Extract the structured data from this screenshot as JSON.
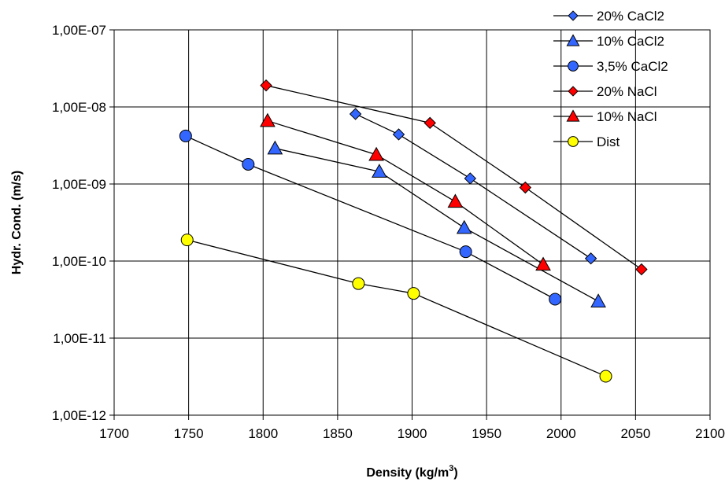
{
  "chart_data": {
    "type": "scatter",
    "title": "",
    "xlabel": "Density (kg/m",
    "xlabel_sup": "3",
    "xlabel_close": ")",
    "ylabel": "Hydr. Cond. (m/s)",
    "xlim": [
      1700,
      2100
    ],
    "ylim": [
      1e-12,
      1e-07
    ],
    "y_scale": "log",
    "grid": true,
    "legend_position": "top-right",
    "x_ticks": [
      1700,
      1750,
      1800,
      1850,
      1900,
      1950,
      2000,
      2050,
      2100
    ],
    "x_tick_labels": [
      "1700",
      "1750",
      "1800",
      "1850",
      "1900",
      "1950",
      "2000",
      "2050",
      "2100"
    ],
    "y_ticks": [
      1e-12,
      1e-11,
      1e-10,
      1e-09,
      1e-08,
      1e-07
    ],
    "y_tick_labels": [
      "1,00E-12",
      "1,00E-11",
      "1,00E-10",
      "1,00E-09",
      "1,00E-08",
      "1,00E-07"
    ],
    "series": [
      {
        "name": "20% CaCl2",
        "marker": "diamond",
        "color": "#3366ff",
        "x": [
          1862,
          1891,
          1939,
          2020
        ],
        "y": [
          8.1e-09,
          4.4e-09,
          1.18e-09,
          1.08e-10
        ]
      },
      {
        "name": "10% CaCl2",
        "marker": "triangle",
        "color": "#3366ff",
        "x": [
          1808,
          1878,
          1935,
          2025
        ],
        "y": [
          2.9e-09,
          1.45e-09,
          2.7e-10,
          3e-11
        ]
      },
      {
        "name": "3,5% CaCl2",
        "marker": "circle",
        "color": "#3366ff",
        "x": [
          1748,
          1790,
          1936,
          1996
        ],
        "y": [
          4.2e-09,
          1.8e-09,
          1.32e-10,
          3.2e-11
        ]
      },
      {
        "name": "20% NaCl",
        "marker": "diamond",
        "color": "#ff0000",
        "x": [
          1802,
          1912,
          1976,
          2054
        ],
        "y": [
          1.9e-08,
          6.2e-09,
          9e-10,
          7.8e-11
        ]
      },
      {
        "name": "10% NaCl",
        "marker": "triangle",
        "color": "#ff0000",
        "x": [
          1803,
          1876,
          1929,
          1988
        ],
        "y": [
          6.6e-09,
          2.4e-09,
          5.9e-10,
          9e-11
        ]
      },
      {
        "name": "Dist",
        "marker": "circle",
        "color": "#ffff00",
        "x": [
          1749,
          1864,
          1901,
          2030
        ],
        "y": [
          1.88e-10,
          5.1e-11,
          3.8e-11,
          3.2e-12
        ]
      }
    ]
  }
}
